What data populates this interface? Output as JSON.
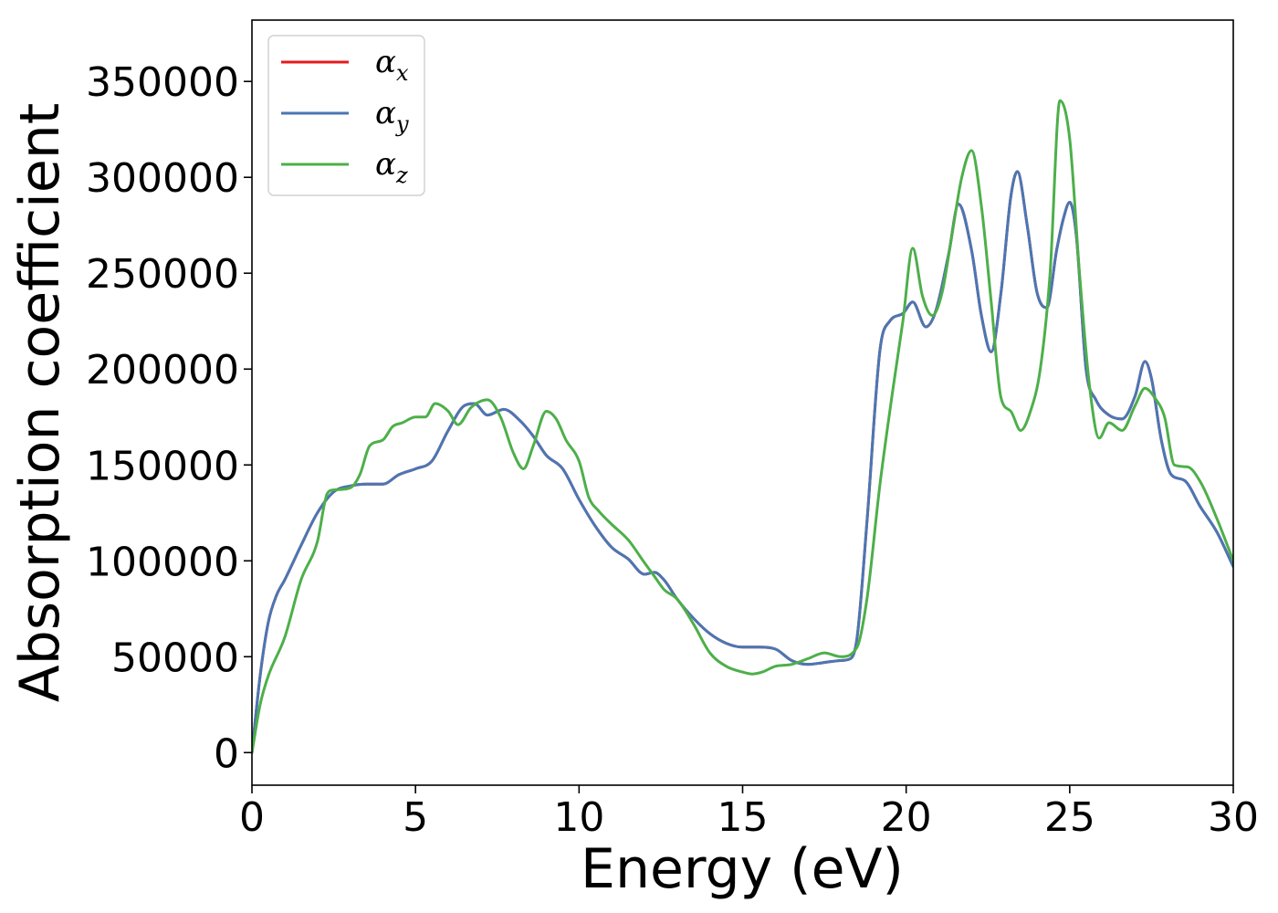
{
  "chart_data": {
    "type": "line",
    "title": "",
    "xlabel": "Energy (eV)",
    "ylabel": "Absorption coefficient",
    "xlim": [
      0,
      30
    ],
    "ylim": [
      -17000,
      382000
    ],
    "xticks": [
      0,
      5,
      10,
      15,
      20,
      25,
      30
    ],
    "yticks": [
      0,
      50000,
      100000,
      150000,
      200000,
      250000,
      300000,
      350000
    ],
    "grid": false,
    "legend_position": "top-left",
    "series": [
      {
        "name": "α",
        "subscript": "x",
        "color": "#e41a1c",
        "x": [
          0,
          0.25,
          0.5,
          0.75,
          1,
          1.5,
          2,
          2.5,
          3,
          3.5,
          4,
          4.5,
          5,
          5.5,
          6,
          6.5,
          6.8,
          7.2,
          7.7,
          8.2,
          8.6,
          9,
          9.5,
          10,
          10.5,
          11,
          11.5,
          12,
          12.3,
          12.6,
          13,
          13.5,
          14,
          14.5,
          15,
          15.5,
          16,
          16.5,
          17,
          17.5,
          18,
          18.3,
          18.5,
          18.8,
          19.2,
          19.5,
          19.9,
          20.2,
          20.6,
          20.9,
          21.3,
          21.6,
          22,
          22.3,
          22.6,
          22.9,
          23.2,
          23.4,
          23.7,
          24,
          24.3,
          24.6,
          24.8,
          25,
          25.2,
          25.5,
          25.8,
          26.2,
          26.6,
          27,
          27.3,
          27.5,
          27.8,
          28.1,
          28.5,
          29,
          29.5,
          30
        ],
        "values": [
          0,
          40000,
          68000,
          82000,
          90000,
          108000,
          125000,
          136000,
          139000,
          140000,
          140000,
          145000,
          148000,
          152000,
          168000,
          181000,
          182000,
          176000,
          179000,
          173000,
          165000,
          155000,
          148000,
          132000,
          118000,
          107000,
          101000,
          93000,
          94000,
          90000,
          80000,
          70000,
          62000,
          57000,
          55000,
          55000,
          54000,
          48000,
          46000,
          47000,
          48000,
          49000,
          60000,
          120000,
          210000,
          225000,
          229000,
          235000,
          222000,
          230000,
          260000,
          286000,
          262000,
          228000,
          209000,
          240000,
          290000,
          303000,
          275000,
          240000,
          232000,
          262000,
          278000,
          287000,
          270000,
          200000,
          184000,
          176000,
          174000,
          186000,
          204000,
          195000,
          163000,
          145000,
          142000,
          128000,
          115000,
          97000
        ]
      },
      {
        "name": "α",
        "subscript": "y",
        "color": "#4a77b4",
        "x": [
          0,
          0.25,
          0.5,
          0.75,
          1,
          1.5,
          2,
          2.5,
          3,
          3.5,
          4,
          4.5,
          5,
          5.5,
          6,
          6.5,
          6.8,
          7.2,
          7.7,
          8.2,
          8.6,
          9,
          9.5,
          10,
          10.5,
          11,
          11.5,
          12,
          12.3,
          12.6,
          13,
          13.5,
          14,
          14.5,
          15,
          15.5,
          16,
          16.5,
          17,
          17.5,
          18,
          18.3,
          18.5,
          18.8,
          19.2,
          19.5,
          19.9,
          20.2,
          20.6,
          20.9,
          21.3,
          21.6,
          22,
          22.3,
          22.6,
          22.9,
          23.2,
          23.4,
          23.7,
          24,
          24.3,
          24.6,
          24.8,
          25,
          25.2,
          25.5,
          25.8,
          26.2,
          26.6,
          27,
          27.3,
          27.5,
          27.8,
          28.1,
          28.5,
          29,
          29.5,
          30
        ],
        "values": [
          0,
          40000,
          68000,
          82000,
          90000,
          108000,
          125000,
          136000,
          139000,
          140000,
          140000,
          145000,
          148000,
          152000,
          168000,
          181000,
          182000,
          176000,
          179000,
          173000,
          165000,
          155000,
          148000,
          132000,
          118000,
          107000,
          101000,
          93000,
          94000,
          90000,
          80000,
          70000,
          62000,
          57000,
          55000,
          55000,
          54000,
          48000,
          46000,
          47000,
          48000,
          49000,
          60000,
          120000,
          210000,
          225000,
          229000,
          235000,
          222000,
          230000,
          260000,
          286000,
          262000,
          228000,
          209000,
          240000,
          290000,
          303000,
          275000,
          240000,
          232000,
          262000,
          278000,
          287000,
          270000,
          200000,
          184000,
          176000,
          174000,
          186000,
          204000,
          195000,
          163000,
          145000,
          142000,
          128000,
          115000,
          97000
        ]
      },
      {
        "name": "α",
        "subscript": "z",
        "color": "#4daf4a",
        "x": [
          0,
          0.25,
          0.5,
          1,
          1.5,
          2,
          2.3,
          2.5,
          3,
          3.3,
          3.6,
          4,
          4.3,
          4.6,
          5,
          5.3,
          5.6,
          6,
          6.3,
          6.7,
          7.2,
          7.6,
          8,
          8.3,
          8.6,
          9,
          9.3,
          9.6,
          10,
          10.3,
          10.6,
          11,
          11.5,
          12,
          12.3,
          12.6,
          13,
          13.5,
          14,
          14.5,
          15,
          15.3,
          15.6,
          16,
          16.5,
          17,
          17.5,
          18,
          18.5,
          18.8,
          19.2,
          19.6,
          19.9,
          20.2,
          20.5,
          20.8,
          21.1,
          21.4,
          21.7,
          22,
          22.3,
          22.6,
          22.9,
          23.2,
          23.5,
          23.8,
          24.1,
          24.4,
          24.7,
          25,
          25.3,
          25.6,
          25.9,
          26.2,
          26.6,
          27,
          27.3,
          27.6,
          27.9,
          28.2,
          28.6,
          29,
          29.5,
          30
        ],
        "values": [
          0,
          25000,
          40000,
          60000,
          90000,
          110000,
          135000,
          137000,
          138000,
          145000,
          160000,
          163000,
          170000,
          172000,
          175000,
          175000,
          182000,
          178000,
          171000,
          180000,
          184000,
          175000,
          156000,
          148000,
          160000,
          178000,
          174000,
          163000,
          152000,
          133000,
          126000,
          119000,
          111000,
          99000,
          92000,
          85000,
          80000,
          67000,
          52000,
          45000,
          42000,
          41000,
          42000,
          45000,
          46000,
          49000,
          52000,
          50000,
          55000,
          80000,
          140000,
          190000,
          225000,
          263000,
          238000,
          228000,
          240000,
          270000,
          300000,
          314000,
          285000,
          235000,
          185000,
          178000,
          168000,
          178000,
          200000,
          250000,
          340000,
          320000,
          250000,
          192000,
          164000,
          172000,
          168000,
          181000,
          190000,
          185000,
          175000,
          150000,
          149000,
          141000,
          122000,
          100000
        ]
      }
    ]
  }
}
